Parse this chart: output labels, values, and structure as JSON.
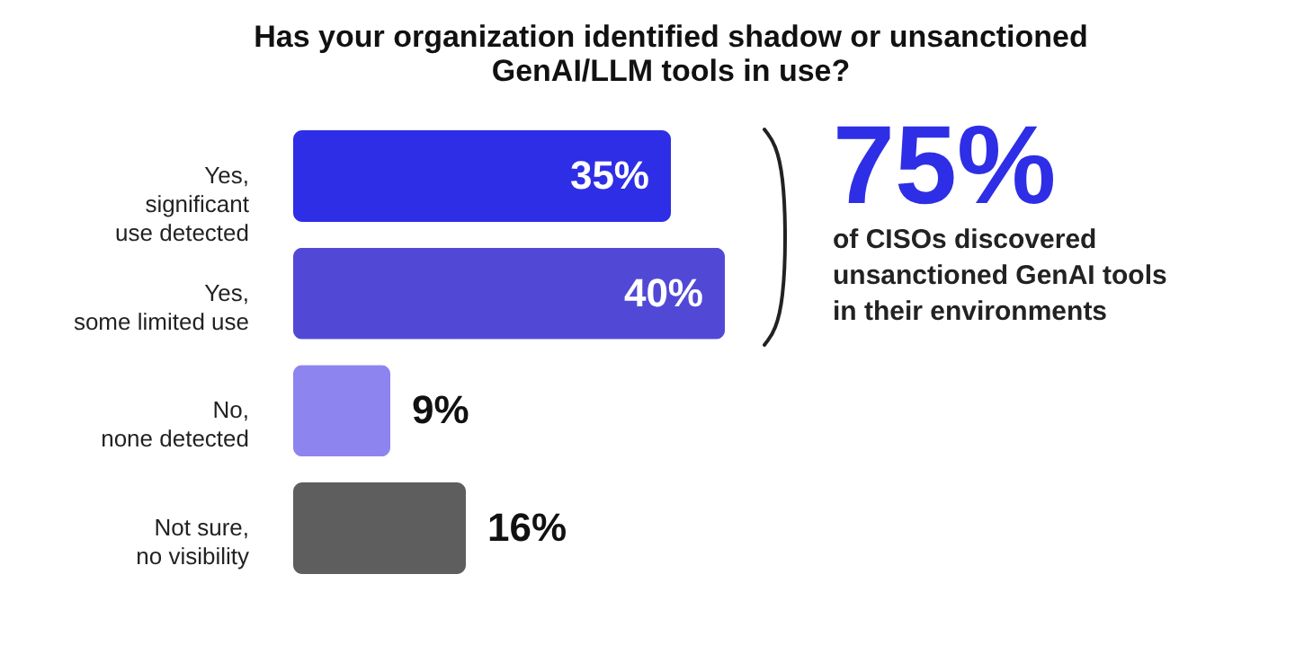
{
  "chart_data": {
    "type": "bar",
    "orientation": "horizontal",
    "title": "Has your organization identified shadow or unsanctioned\nGenAI/LLM tools in use?",
    "categories": [
      "Yes,\nsignificant\nuse detected",
      "Yes,\nsome limited use",
      "No,\nnone detected",
      "Not sure,\nno visibility"
    ],
    "values": [
      35,
      40,
      9,
      16
    ],
    "colors": [
      "#2e2ee6",
      "#5149d6",
      "#8d84f0",
      "#5e5e5e"
    ],
    "value_labels": [
      "35%",
      "40%",
      "9%",
      "16%"
    ],
    "annotations": [
      "75%",
      "of CISOs discovered\nunsanctioned GenAI tools\nin their environments"
    ],
    "grid": false
  }
}
